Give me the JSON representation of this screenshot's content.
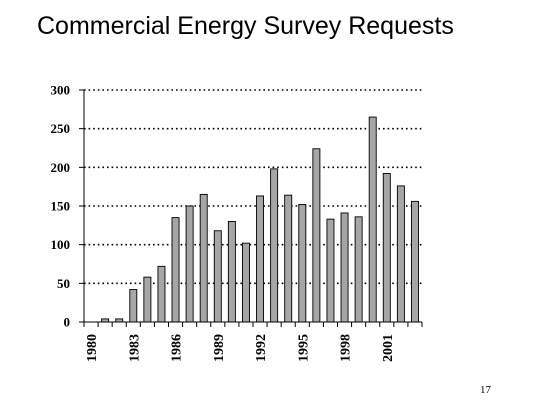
{
  "slide": {
    "title": "Commercial Energy Survey Requests",
    "page_number": "17"
  },
  "colors": {
    "bar_fill": "#a6a6a6",
    "bar_stroke": "#000000",
    "grid": "#000000",
    "background": "#ffffff"
  },
  "chart_data": {
    "type": "bar",
    "title": "Commercial Energy Survey Requests",
    "xlabel": "",
    "ylabel": "",
    "ylim": [
      0,
      300
    ],
    "yticks": [
      0,
      50,
      100,
      150,
      200,
      250,
      300
    ],
    "xtick_labels": [
      "1980",
      "1983",
      "1986",
      "1989",
      "1992",
      "1995",
      "1998",
      "2001"
    ],
    "grid": "horizontal dotted",
    "legend": "none",
    "categories": [
      "1980",
      "1981",
      "1982",
      "1983",
      "1984",
      "1985",
      "1986",
      "1987",
      "1988",
      "1989",
      "1990",
      "1991",
      "1992",
      "1993",
      "1994",
      "1995",
      "1996",
      "1997",
      "1998",
      "1999",
      "2000",
      "2001",
      "2002",
      "2003"
    ],
    "values": [
      0,
      4,
      4,
      42,
      58,
      72,
      135,
      150,
      165,
      118,
      130,
      102,
      163,
      198,
      164,
      152,
      224,
      133,
      141,
      136,
      265,
      192,
      176,
      156
    ]
  }
}
